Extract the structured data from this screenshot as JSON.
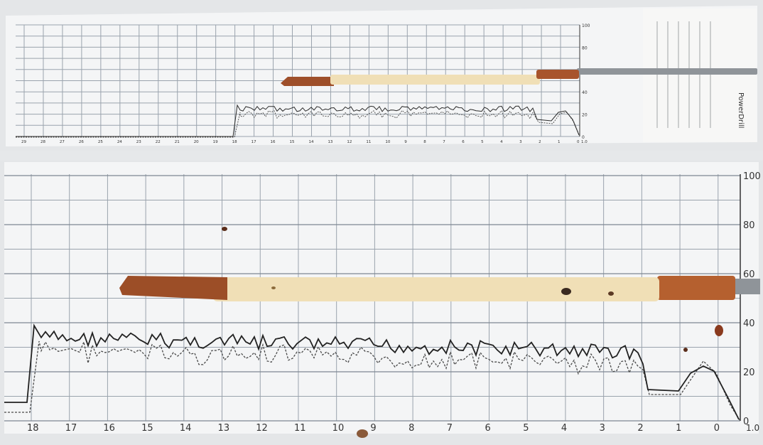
{
  "colors": {
    "paper": "#f4f5f6",
    "grid": "#9aa3ad",
    "trace_solid": "#2b2b2b",
    "trace_dotted": "#4a4a4a",
    "wood_core": "#f0dfb6",
    "wood_bark": "#a8542c",
    "borer_rod": "#8f9499"
  },
  "top_panel": {
    "y_ticks": [
      "100",
      "80",
      "60",
      "40",
      "20",
      "0"
    ],
    "x_ticks": [
      "29",
      "28",
      "27",
      "26",
      "25",
      "24",
      "23",
      "22",
      "21",
      "20",
      "19",
      "18",
      "17",
      "16",
      "15",
      "14",
      "13",
      "12",
      "11",
      "10",
      "9",
      "8",
      "7",
      "6",
      "5",
      "4",
      "3",
      "2",
      "1",
      "0"
    ],
    "right_end_label": "1.0",
    "brand": "PowerDrill"
  },
  "bottom_panel": {
    "y_ticks": [
      "100",
      "80",
      "60",
      "40",
      "20",
      "0"
    ],
    "x_ticks": [
      "18",
      "17",
      "16",
      "15",
      "14",
      "13",
      "12",
      "11",
      "10",
      "9",
      "8",
      "7",
      "6",
      "5",
      "4",
      "3",
      "2",
      "1",
      "0"
    ],
    "right_end_label": "1.0"
  }
}
